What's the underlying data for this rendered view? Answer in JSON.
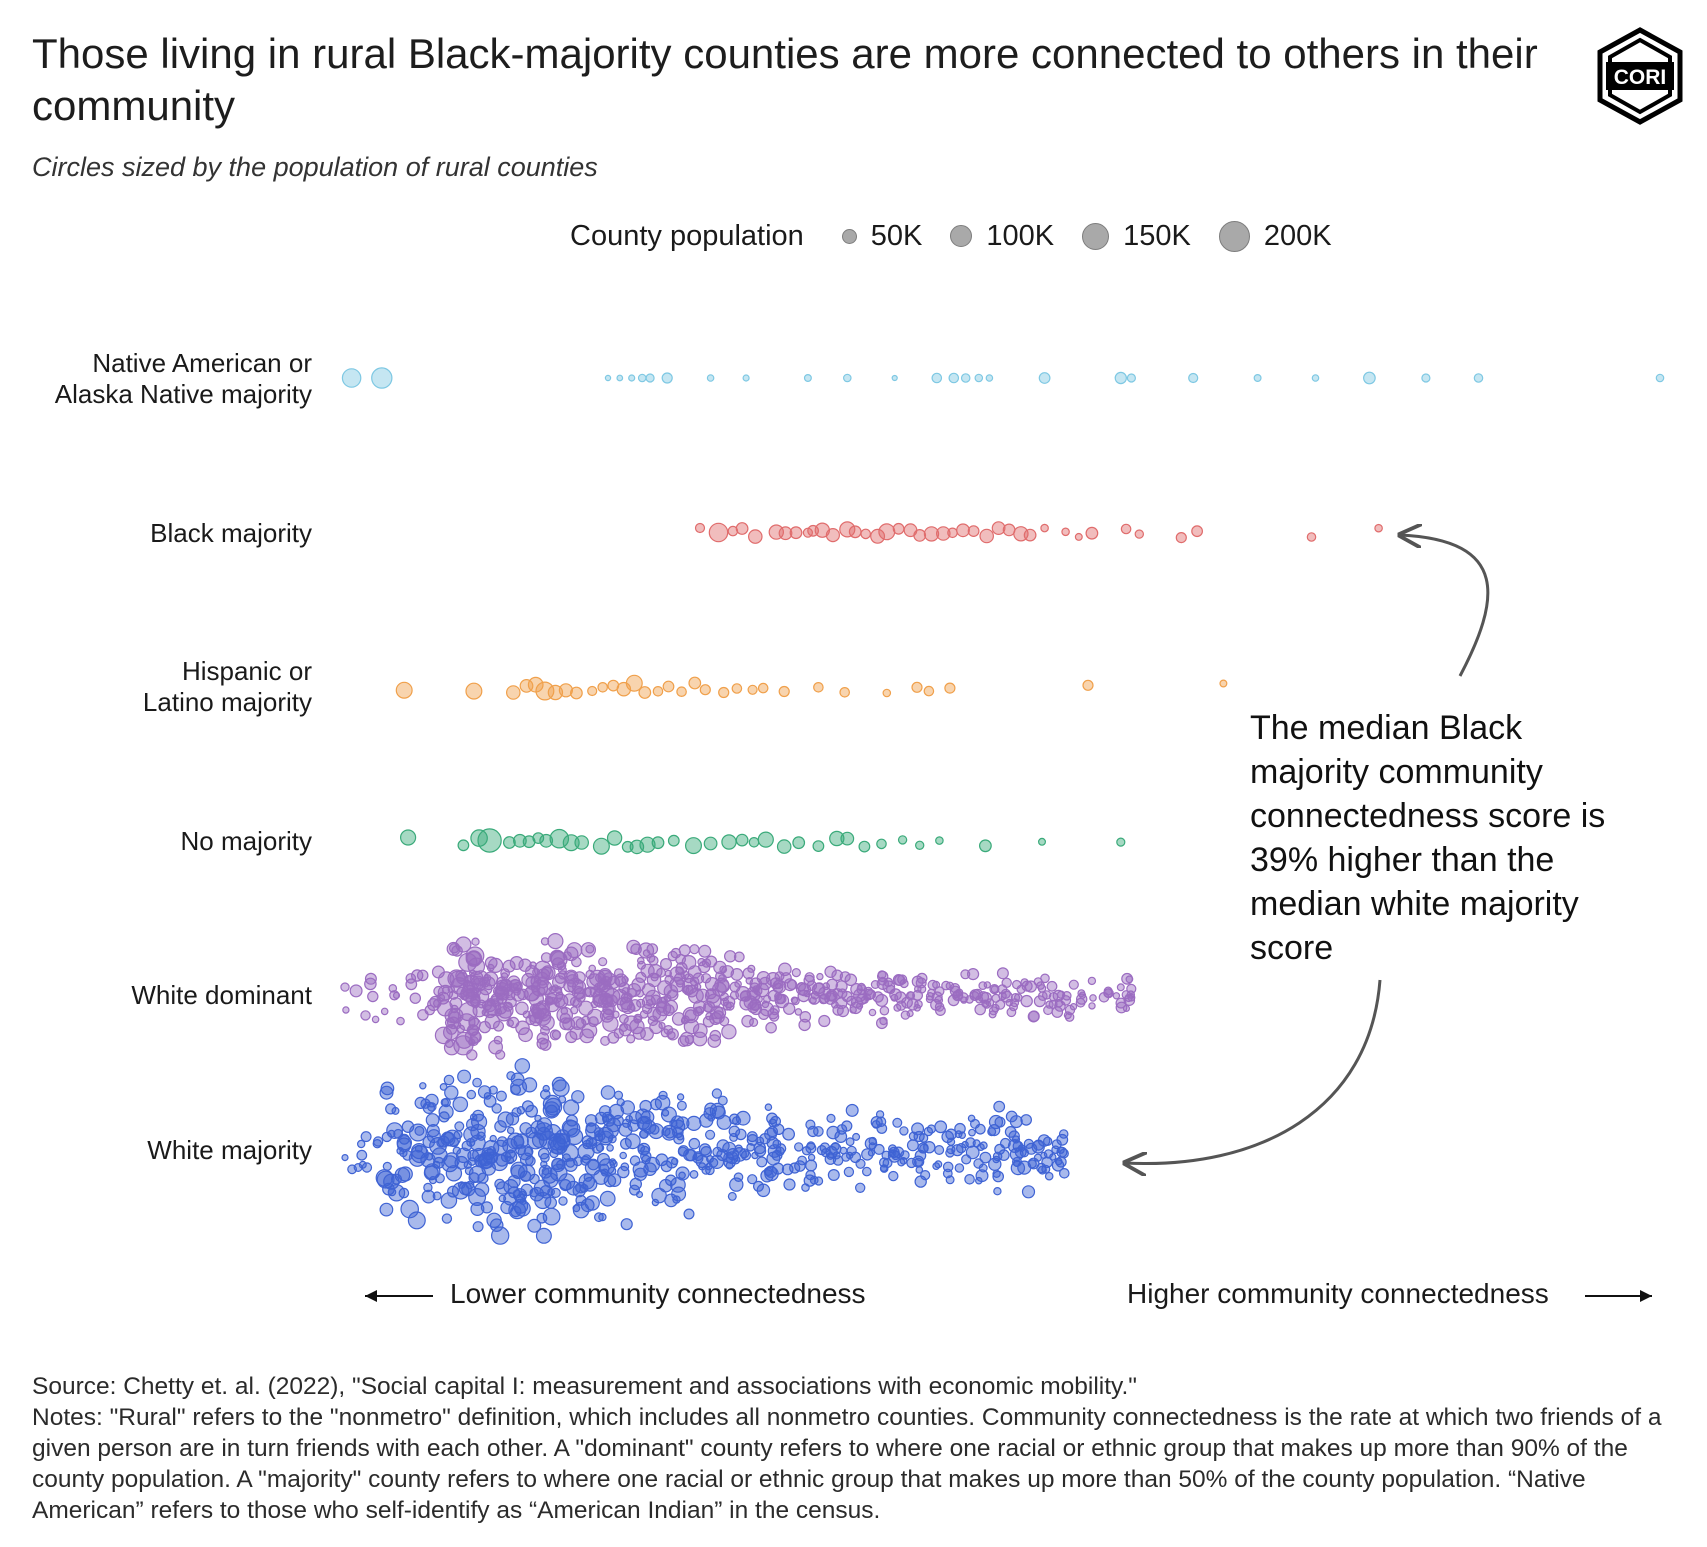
{
  "title": "Those living in rural Black-majority counties are more connected to others in their community",
  "subtitle": "Circles sized by the population of rural counties",
  "logo_text": "CORI",
  "legend": {
    "title": "County population",
    "items": [
      "50K",
      "100K",
      "150K",
      "200K"
    ]
  },
  "annotation": "The median Black majority community connectedness score is 39% higher than the median white majority score",
  "axis_left": "Lower community connectedness",
  "axis_right": "Higher community connectedness",
  "footer": {
    "source": "Source: Chetty et. al. (2022), \"Social capital I: measurement and associations with economic mobility.\"",
    "notes": "Notes: \"Rural\" refers to the \"nonmetro\" definition, which includes all nonmetro counties. Community connectedness is the rate at which two friends of a given person are in turn friends with each other. A \"dominant\" county refers to where one racial or ethnic group that makes up more than 90% of the county population. A \"majority\" county refers to where one racial or ethnic group that makes up more than 50% of the county population. “Native American” refers to those who self-identify as “American Indian” in the census."
  },
  "colors": {
    "native": "#7ec8e3",
    "black": "#e06c6c",
    "hispanic": "#f0a04b",
    "nomajority": "#3aaa7a",
    "whitedominant": "#9b6cc1",
    "whitemajority": "#3f63d4",
    "legend_dot": "#a9a9a9",
    "arrow": "#555555"
  },
  "chart_data": {
    "type": "scatter",
    "x_axis": "community connectedness (lower to higher)",
    "size_variable": "County population",
    "size_legend": [
      50000,
      100000,
      150000,
      200000
    ],
    "series": [
      {
        "name": "Native American or Alaska Native majority",
        "label_lines": [
          "Native American or",
          "Alaska Native majority"
        ],
        "color_key": "native",
        "points": [
          [
            0.005,
            75000
          ],
          [
            0.028,
            90000
          ],
          [
            0.2,
            6000
          ],
          [
            0.209,
            7000
          ],
          [
            0.218,
            8000
          ],
          [
            0.226,
            12000
          ],
          [
            0.232,
            14000
          ],
          [
            0.245,
            22000
          ],
          [
            0.278,
            9000
          ],
          [
            0.305,
            8000
          ],
          [
            0.352,
            10000
          ],
          [
            0.382,
            12000
          ],
          [
            0.418,
            4000
          ],
          [
            0.45,
            20000
          ],
          [
            0.463,
            20000
          ],
          [
            0.472,
            16000
          ],
          [
            0.482,
            12000
          ],
          [
            0.49,
            9000
          ],
          [
            0.532,
            25000
          ],
          [
            0.59,
            28000
          ],
          [
            0.598,
            14000
          ],
          [
            0.645,
            18000
          ],
          [
            0.694,
            10000
          ],
          [
            0.738,
            9000
          ],
          [
            0.779,
            30000
          ],
          [
            0.822,
            14000
          ],
          [
            0.862,
            16000
          ],
          [
            1.0,
            12000
          ]
        ]
      },
      {
        "name": "Black majority",
        "label_lines": [
          "Black majority"
        ],
        "color_key": "black",
        "points": [
          [
            0.27,
            18000
          ],
          [
            0.284,
            75000
          ],
          [
            0.295,
            20000
          ],
          [
            0.302,
            30000
          ],
          [
            0.312,
            40000
          ],
          [
            0.328,
            45000
          ],
          [
            0.335,
            35000
          ],
          [
            0.343,
            30000
          ],
          [
            0.352,
            18000
          ],
          [
            0.356,
            25000
          ],
          [
            0.363,
            45000
          ],
          [
            0.371,
            38000
          ],
          [
            0.382,
            50000
          ],
          [
            0.388,
            30000
          ],
          [
            0.396,
            20000
          ],
          [
            0.405,
            42000
          ],
          [
            0.412,
            55000
          ],
          [
            0.421,
            25000
          ],
          [
            0.43,
            35000
          ],
          [
            0.437,
            30000
          ],
          [
            0.446,
            45000
          ],
          [
            0.455,
            40000
          ],
          [
            0.462,
            20000
          ],
          [
            0.47,
            35000
          ],
          [
            0.478,
            25000
          ],
          [
            0.488,
            40000
          ],
          [
            0.497,
            35000
          ],
          [
            0.505,
            30000
          ],
          [
            0.514,
            45000
          ],
          [
            0.521,
            30000
          ],
          [
            0.532,
            12000
          ],
          [
            0.548,
            12000
          ],
          [
            0.558,
            10000
          ],
          [
            0.568,
            30000
          ],
          [
            0.594,
            20000
          ],
          [
            0.604,
            15000
          ],
          [
            0.636,
            22000
          ],
          [
            0.648,
            25000
          ],
          [
            0.735,
            16000
          ],
          [
            0.786,
            12000
          ]
        ]
      },
      {
        "name": "Hispanic or Latino majority",
        "label_lines": [
          "Hispanic or",
          "Latino majority"
        ],
        "color_key": "hispanic",
        "points": [
          [
            0.045,
            55000
          ],
          [
            0.098,
            55000
          ],
          [
            0.128,
            40000
          ],
          [
            0.138,
            35000
          ],
          [
            0.145,
            48000
          ],
          [
            0.152,
            70000
          ],
          [
            0.16,
            45000
          ],
          [
            0.168,
            38000
          ],
          [
            0.176,
            30000
          ],
          [
            0.188,
            18000
          ],
          [
            0.196,
            20000
          ],
          [
            0.204,
            25000
          ],
          [
            0.212,
            40000
          ],
          [
            0.22,
            55000
          ],
          [
            0.228,
            30000
          ],
          [
            0.238,
            20000
          ],
          [
            0.246,
            25000
          ],
          [
            0.256,
            20000
          ],
          [
            0.266,
            30000
          ],
          [
            0.274,
            22000
          ],
          [
            0.288,
            22000
          ],
          [
            0.298,
            20000
          ],
          [
            0.31,
            18000
          ],
          [
            0.318,
            20000
          ],
          [
            0.334,
            22000
          ],
          [
            0.36,
            20000
          ],
          [
            0.38,
            20000
          ],
          [
            0.412,
            12000
          ],
          [
            0.435,
            22000
          ],
          [
            0.444,
            20000
          ],
          [
            0.46,
            22000
          ],
          [
            0.565,
            22000
          ],
          [
            0.668,
            10000
          ]
        ]
      },
      {
        "name": "No majority",
        "label_lines": [
          "No majority"
        ],
        "color_key": "nomajority",
        "points": [
          [
            0.048,
            50000
          ],
          [
            0.09,
            25000
          ],
          [
            0.102,
            60000
          ],
          [
            0.11,
            120000
          ],
          [
            0.125,
            30000
          ],
          [
            0.133,
            35000
          ],
          [
            0.14,
            30000
          ],
          [
            0.147,
            25000
          ],
          [
            0.153,
            35000
          ],
          [
            0.163,
            75000
          ],
          [
            0.172,
            55000
          ],
          [
            0.18,
            40000
          ],
          [
            0.195,
            55000
          ],
          [
            0.205,
            45000
          ],
          [
            0.215,
            25000
          ],
          [
            0.222,
            40000
          ],
          [
            0.23,
            50000
          ],
          [
            0.238,
            30000
          ],
          [
            0.25,
            25000
          ],
          [
            0.265,
            55000
          ],
          [
            0.278,
            35000
          ],
          [
            0.292,
            45000
          ],
          [
            0.302,
            30000
          ],
          [
            0.311,
            20000
          ],
          [
            0.32,
            50000
          ],
          [
            0.334,
            40000
          ],
          [
            0.345,
            30000
          ],
          [
            0.36,
            25000
          ],
          [
            0.374,
            45000
          ],
          [
            0.382,
            35000
          ],
          [
            0.395,
            25000
          ],
          [
            0.408,
            20000
          ],
          [
            0.424,
            15000
          ],
          [
            0.437,
            15000
          ],
          [
            0.452,
            12000
          ],
          [
            0.487,
            30000
          ],
          [
            0.53,
            10000
          ],
          [
            0.59,
            14000
          ]
        ]
      },
      {
        "name": "White dominant",
        "label_lines": [
          "White dominant"
        ],
        "color_key": "whitedominant",
        "points": [
          [
            0.0,
            15000
          ],
          [
            0.05,
            20000
          ],
          [
            0.075,
            60000
          ],
          [
            0.09,
            80000
          ],
          [
            0.1,
            35000
          ],
          [
            0.112,
            45000
          ],
          [
            0.122,
            30000
          ],
          [
            0.135,
            40000
          ],
          [
            0.148,
            55000
          ],
          [
            0.16,
            50000
          ],
          [
            0.172,
            40000
          ],
          [
            0.185,
            45000
          ],
          [
            0.198,
            40000
          ],
          [
            0.21,
            35000
          ],
          [
            0.222,
            45000
          ],
          [
            0.235,
            40000
          ],
          [
            0.248,
            35000
          ],
          [
            0.26,
            40000
          ],
          [
            0.272,
            35000
          ],
          [
            0.285,
            30000
          ],
          [
            0.298,
            30000
          ],
          [
            0.312,
            25000
          ],
          [
            0.326,
            25000
          ],
          [
            0.34,
            20000
          ],
          [
            0.355,
            20000
          ],
          [
            0.37,
            18000
          ],
          [
            0.385,
            18000
          ],
          [
            0.4,
            18000
          ],
          [
            0.415,
            15000
          ],
          [
            0.43,
            14000
          ],
          [
            0.445,
            12000
          ],
          [
            0.46,
            12000
          ],
          [
            0.475,
            12000
          ],
          [
            0.488,
            12000
          ],
          [
            0.5,
            12000
          ],
          [
            0.512,
            12000
          ],
          [
            0.53,
            12000
          ],
          [
            0.543,
            12000
          ],
          [
            0.56,
            10000
          ],
          [
            0.59,
            10000
          ],
          [
            0.598,
            10000
          ]
        ]
      },
      {
        "name": "White majority",
        "label_lines": [
          "White majority"
        ],
        "color_key": "whitemajority",
        "points": [
          [
            0.0,
            8000
          ],
          [
            0.03,
            60000
          ],
          [
            0.055,
            55000
          ],
          [
            0.072,
            50000
          ],
          [
            0.088,
            60000
          ],
          [
            0.102,
            50000
          ],
          [
            0.118,
            65000
          ],
          [
            0.132,
            55000
          ],
          [
            0.145,
            60000
          ],
          [
            0.158,
            55000
          ],
          [
            0.172,
            50000
          ],
          [
            0.188,
            45000
          ],
          [
            0.2,
            40000
          ],
          [
            0.215,
            40000
          ],
          [
            0.23,
            35000
          ],
          [
            0.248,
            35000
          ],
          [
            0.262,
            30000
          ],
          [
            0.278,
            30000
          ],
          [
            0.295,
            28000
          ],
          [
            0.31,
            25000
          ],
          [
            0.325,
            22000
          ],
          [
            0.342,
            22000
          ],
          [
            0.36,
            20000
          ],
          [
            0.375,
            20000
          ],
          [
            0.392,
            18000
          ],
          [
            0.41,
            18000
          ],
          [
            0.425,
            15000
          ],
          [
            0.44,
            15000
          ],
          [
            0.46,
            15000
          ],
          [
            0.475,
            20000
          ],
          [
            0.487,
            25000
          ],
          [
            0.507,
            25000
          ],
          [
            0.52,
            18000
          ],
          [
            0.535,
            15000
          ],
          [
            0.547,
            20000
          ]
        ]
      }
    ]
  }
}
